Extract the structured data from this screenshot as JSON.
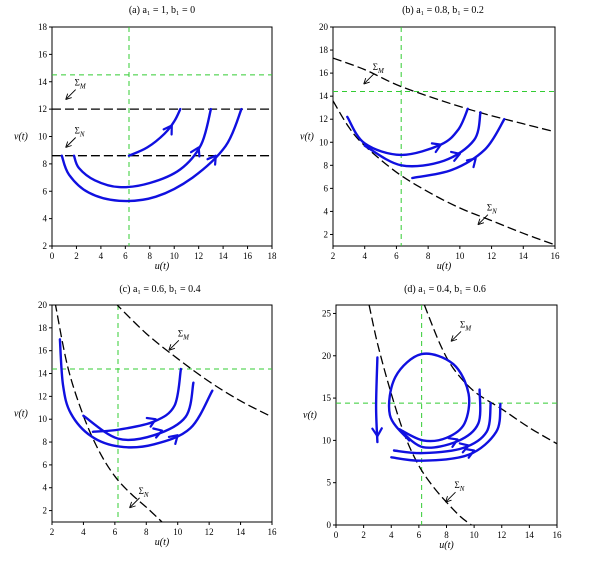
{
  "figure": {
    "background": "#ffffff"
  },
  "style": {
    "trajectory_color": "#1010e0",
    "boundary_color": "#000000",
    "equilibrium_line_color": "#33cc33"
  },
  "chart_data": [
    {
      "id": "a",
      "type": "line",
      "title": "(a) a₁ = 1, b₁ = 0",
      "xlabel": "u(t)",
      "ylabel": "v(t)",
      "xlim": [
        0,
        18
      ],
      "ylim": [
        2,
        18
      ],
      "xticks": [
        0,
        2,
        4,
        6,
        8,
        10,
        12,
        14,
        16,
        18
      ],
      "yticks": [
        2,
        4,
        6,
        8,
        10,
        12,
        14,
        16,
        18
      ],
      "equilibrium": {
        "u": 6.3,
        "v": 14.5
      },
      "boundaries": [
        {
          "label": "Σ_M",
          "points": [
            [
              0,
              12
            ],
            [
              18,
              12
            ]
          ],
          "annotation_at": [
            1.2,
            13.5
          ]
        },
        {
          "label": "Σ_N",
          "points": [
            [
              0,
              8.6
            ],
            [
              18,
              8.6
            ]
          ],
          "annotation_at": [
            1.2,
            10.0
          ]
        }
      ],
      "trajectories": [
        {
          "points": [
            [
              6.3,
              8.6
            ],
            [
              7.8,
              9.2
            ],
            [
              9.2,
              10.2
            ],
            [
              10.0,
              11.1
            ],
            [
              10.5,
              12
            ]
          ],
          "arrows": [
            [
              9.8,
              10.8
            ]
          ]
        },
        {
          "points": [
            [
              1.8,
              8.6
            ],
            [
              2.2,
              7.7
            ],
            [
              3.5,
              6.8
            ],
            [
              5.5,
              6.3
            ],
            [
              8.0,
              6.6
            ],
            [
              10.5,
              7.6
            ],
            [
              12.2,
              9.4
            ],
            [
              13.0,
              12
            ]
          ],
          "arrows": [
            [
              12.0,
              9.2
            ]
          ]
        },
        {
          "points": [
            [
              0.8,
              8.6
            ],
            [
              1.4,
              7.2
            ],
            [
              3.0,
              5.9
            ],
            [
              5.5,
              5.3
            ],
            [
              8.5,
              5.6
            ],
            [
              11.5,
              7.0
            ],
            [
              14.2,
              9.3
            ],
            [
              15.5,
              12
            ]
          ],
          "arrows": [
            [
              13.4,
              8.6
            ]
          ]
        }
      ]
    },
    {
      "id": "b",
      "type": "line",
      "title": "(b) a₁ = 0.8, b₁ = 0.2",
      "xlabel": "u(t)",
      "ylabel": "v(t)",
      "xlim": [
        2,
        16
      ],
      "ylim": [
        1,
        20
      ],
      "xticks": [
        2,
        4,
        6,
        8,
        10,
        12,
        14,
        16
      ],
      "yticks": [
        2,
        4,
        6,
        8,
        10,
        12,
        14,
        16,
        18,
        20
      ],
      "equilibrium": {
        "u": 6.3,
        "v": 14.4
      },
      "boundaries": [
        {
          "label": "Σ_M",
          "points": [
            [
              2,
              17.3
            ],
            [
              4,
              16.3
            ],
            [
              6,
              15.0
            ],
            [
              8,
              14.0
            ],
            [
              10,
              13.1
            ],
            [
              12,
              12.3
            ],
            [
              14,
              11.6
            ],
            [
              16,
              10.9
            ]
          ],
          "annotation_at": [
            4.0,
            16.0
          ]
        },
        {
          "label": "Σ_N",
          "points": [
            [
              2,
              13.6
            ],
            [
              3,
              11.3
            ],
            [
              4,
              9.7
            ],
            [
              6,
              7.4
            ],
            [
              8,
              5.7
            ],
            [
              10,
              4.3
            ],
            [
              12,
              3.2
            ],
            [
              14,
              2.1
            ],
            [
              16,
              1.1
            ]
          ],
          "annotation_at": [
            11.2,
            3.8
          ]
        }
      ],
      "trajectories": [
        {
          "points": [
            [
              2.9,
              12.2
            ],
            [
              4,
              9.9
            ],
            [
              6.3,
              8.9
            ],
            [
              8.8,
              9.8
            ],
            [
              9.9,
              11.1
            ],
            [
              10.5,
              12.9
            ]
          ],
          "arrows": [
            [
              8.8,
              9.8
            ]
          ]
        },
        {
          "points": [
            [
              4,
              9.7
            ],
            [
              6.3,
              8.0
            ],
            [
              9.0,
              8.4
            ],
            [
              10.9,
              10.2
            ],
            [
              11.3,
              12.6
            ]
          ],
          "arrows": [
            [
              10.0,
              9.0
            ]
          ]
        },
        {
          "points": [
            [
              7.0,
              6.9
            ],
            [
              9.5,
              7.6
            ],
            [
              11.6,
              9.4
            ],
            [
              12.8,
              12.0
            ]
          ],
          "arrows": [
            [
              11.0,
              8.6
            ]
          ]
        }
      ]
    },
    {
      "id": "c",
      "type": "line",
      "title": "(c) a₁ = 0.6, b₁ = 0.4",
      "xlabel": "u(t)",
      "ylabel": "v(t)",
      "xlim": [
        2,
        16
      ],
      "ylim": [
        1,
        20
      ],
      "xticks": [
        2,
        4,
        6,
        8,
        10,
        12,
        14,
        16
      ],
      "yticks": [
        2,
        4,
        6,
        8,
        10,
        12,
        14,
        16,
        18,
        20
      ],
      "equilibrium": {
        "u": 6.2,
        "v": 14.4
      },
      "boundaries": [
        {
          "label": "Σ_M",
          "points": [
            [
              6.0,
              20.2
            ],
            [
              8,
              17.5
            ],
            [
              10,
              15.3
            ],
            [
              12,
              13.3
            ],
            [
              14,
              11.6
            ],
            [
              16,
              10.2
            ]
          ],
          "annotation_at": [
            9.5,
            17.0
          ]
        },
        {
          "label": "Σ_N",
          "points": [
            [
              2.2,
              20.2
            ],
            [
              3,
              14.6
            ],
            [
              4,
              10.3
            ],
            [
              5,
              7.2
            ],
            [
              6,
              5.0
            ],
            [
              7,
              3.5
            ],
            [
              8,
              2.3
            ],
            [
              9,
              1.0
            ]
          ],
          "annotation_at": [
            7.0,
            3.2
          ]
        }
      ],
      "trajectories": [
        {
          "points": [
            [
              2.5,
              17.0
            ],
            [
              2.7,
              13.0
            ],
            [
              3.2,
              10.5
            ],
            [
              4.5,
              8.5
            ],
            [
              6.3,
              7.6
            ],
            [
              8.5,
              7.8
            ],
            [
              10.8,
              9.2
            ],
            [
              12.2,
              12.5
            ]
          ],
          "arrows": [
            [
              10.0,
              8.6
            ]
          ]
        },
        {
          "points": [
            [
              4.0,
              10.3
            ],
            [
              6.2,
              8.3
            ],
            [
              8.5,
              8.6
            ],
            [
              10.5,
              10.2
            ],
            [
              11.0,
              13.2
            ]
          ],
          "arrows": [
            [
              9.0,
              9.0
            ]
          ]
        },
        {
          "points": [
            [
              4.6,
              8.9
            ],
            [
              6.3,
              9.1
            ],
            [
              8.5,
              9.8
            ],
            [
              9.8,
              11.2
            ],
            [
              10.2,
              14.4
            ]
          ],
          "arrows": [
            [
              8.6,
              10.0
            ]
          ]
        }
      ]
    },
    {
      "id": "d",
      "type": "line",
      "title": "(d) a₁ = 0.4, b₁ = 0.6",
      "xlabel": "u(t)",
      "ylabel": "v(t)",
      "xlim": [
        0,
        16
      ],
      "ylim": [
        0,
        26
      ],
      "xticks": [
        0,
        2,
        4,
        6,
        8,
        10,
        12,
        14,
        16
      ],
      "yticks": [
        0,
        5,
        10,
        15,
        20,
        25
      ],
      "equilibrium": {
        "u": 6.2,
        "v": 14.4
      },
      "boundaries": [
        {
          "label": "Σ_M",
          "points": [
            [
              6.4,
              26
            ],
            [
              7.5,
              21.5
            ],
            [
              8.5,
              18.5
            ],
            [
              10,
              15.8
            ],
            [
              12,
              13.7
            ],
            [
              14,
              11.5
            ],
            [
              16,
              9.6
            ]
          ],
          "annotation_at": [
            8.4,
            23.0
          ]
        },
        {
          "label": "Σ_N",
          "points": [
            [
              2.4,
              26
            ],
            [
              3,
              21.5
            ],
            [
              4,
              15.5
            ],
            [
              5,
              10.5
            ],
            [
              6,
              7.0
            ],
            [
              7,
              4.6
            ],
            [
              8,
              2.7
            ],
            [
              9,
              1.0
            ],
            [
              9.8,
              0
            ]
          ],
          "annotation_at": [
            8.0,
            4.0
          ]
        }
      ],
      "trajectories": [
        {
          "points": [
            [
              3.0,
              19.8
            ],
            [
              2.9,
              14.0
            ],
            [
              3.0,
              9.8
            ]
          ],
          "arrows": [
            [
              3.0,
              10.5
            ]
          ]
        },
        {
          "points": [
            [
              5.3,
              10.0
            ],
            [
              3.9,
              13.0
            ],
            [
              4.3,
              17.5
            ],
            [
              6.2,
              20.2
            ],
            [
              8.5,
              19.0
            ],
            [
              9.6,
              15.5
            ],
            [
              9.3,
              12.0
            ],
            [
              8.0,
              10.3
            ],
            [
              6.3,
              10.0
            ],
            [
              4.6,
              11.3
            ]
          ],
          "arrows": []
        },
        {
          "points": [
            [
              4.6,
              11.3
            ],
            [
              6.3,
              9.2
            ],
            [
              8.8,
              9.9
            ],
            [
              10.3,
              12.0
            ],
            [
              10.4,
              16.0
            ]
          ],
          "arrows": [
            [
              8.8,
              10.1
            ]
          ]
        },
        {
          "points": [
            [
              4.2,
              8.8
            ],
            [
              6.3,
              8.5
            ],
            [
              9.2,
              9.1
            ],
            [
              10.9,
              11.0
            ],
            [
              11.2,
              14.4
            ]
          ],
          "arrows": [
            [
              9.6,
              9.4
            ]
          ]
        },
        {
          "points": [
            [
              4.0,
              8.0
            ],
            [
              6.3,
              7.6
            ],
            [
              9.6,
              8.3
            ],
            [
              11.6,
              11.0
            ],
            [
              11.9,
              14.3
            ]
          ],
          "arrows": [
            [
              10.0,
              8.8
            ]
          ]
        }
      ]
    }
  ]
}
